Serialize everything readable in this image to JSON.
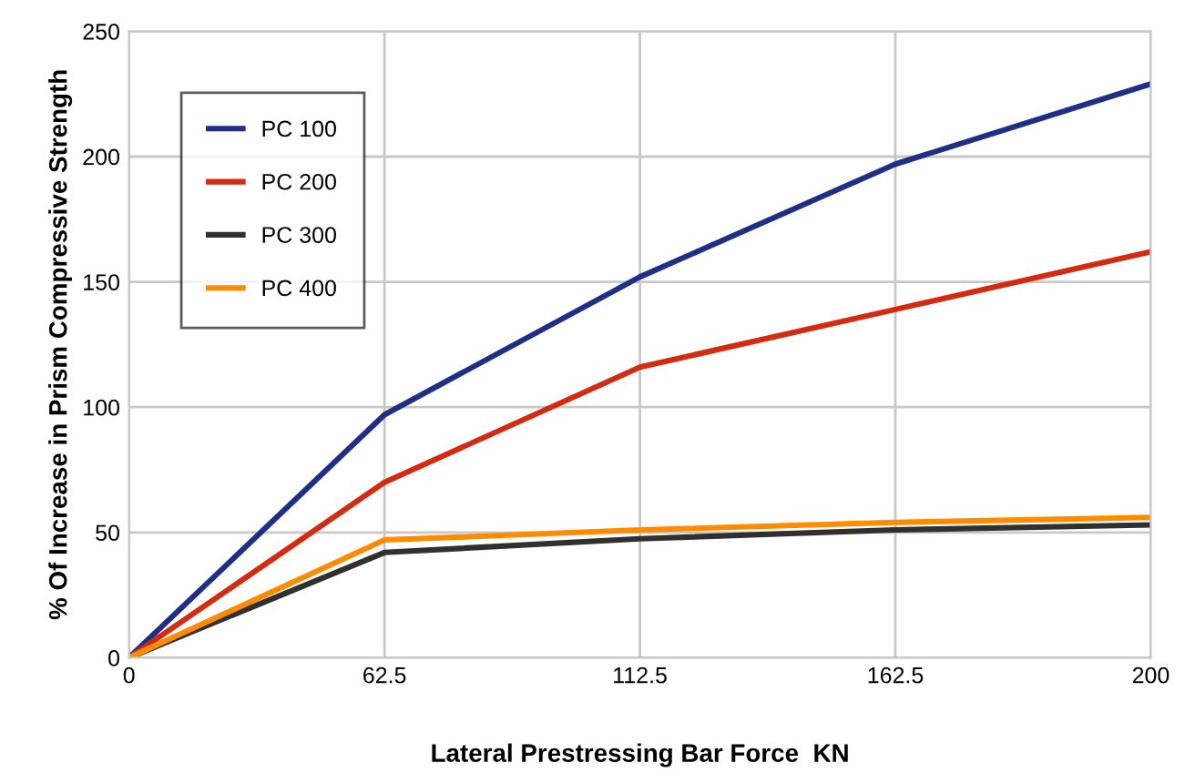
{
  "chart_data": {
    "type": "line",
    "xlabel": "Lateral Prestressing Bar Force  KN",
    "ylabel": "% Of Increase in Prism Compressive Strength",
    "categories": [
      "0",
      "62.5",
      "112.5",
      "162.5",
      "200"
    ],
    "series": [
      {
        "name": "PC 100",
        "color": "#1f2f86",
        "values": [
          0,
          97,
          152,
          197,
          229
        ]
      },
      {
        "name": "PC 200",
        "color": "#d42a10",
        "values": [
          0,
          70,
          116,
          139,
          162
        ]
      },
      {
        "name": "PC 300",
        "color": "#303030",
        "values": [
          0,
          42,
          47.5,
          51,
          53
        ]
      },
      {
        "name": "PC 400",
        "color": "#ff8c00",
        "values": [
          0,
          47,
          51,
          54,
          56
        ]
      }
    ],
    "ylim": [
      0,
      250
    ],
    "yticks": [
      0,
      50,
      100,
      150,
      200,
      250
    ],
    "grid": true,
    "legend": "top left",
    "marker": "none",
    "line_style": "solid"
  }
}
